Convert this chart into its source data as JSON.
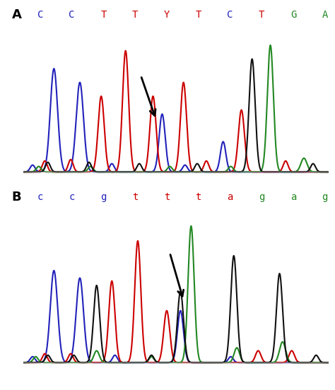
{
  "panel_A": {
    "label": "A",
    "sequence": [
      "C",
      "C",
      "T",
      "T",
      "Y",
      "T",
      "C",
      "T",
      "G",
      "A"
    ],
    "seq_colors": [
      "#2222bb",
      "#2222bb",
      "#cc0000",
      "#cc0000",
      "#cc0000",
      "#cc0000",
      "#2222bb",
      "#cc0000",
      "#228822",
      "#228822"
    ]
  },
  "panel_B": {
    "label": "B",
    "sequence": [
      "c",
      "c",
      "g",
      "t",
      "t",
      "t",
      "a",
      "g",
      "a",
      "g"
    ],
    "seq_colors": [
      "#2222bb",
      "#2222bb",
      "#2222bb",
      "#cc0000",
      "#cc0000",
      "#cc0000",
      "#cc0000",
      "#228822",
      "#228822",
      "#228822"
    ]
  },
  "background": "#ffffff",
  "line_width": 1.5,
  "colors": {
    "blue": "#2222bb",
    "red": "#cc0000",
    "green": "#228822",
    "black": "#111111"
  }
}
